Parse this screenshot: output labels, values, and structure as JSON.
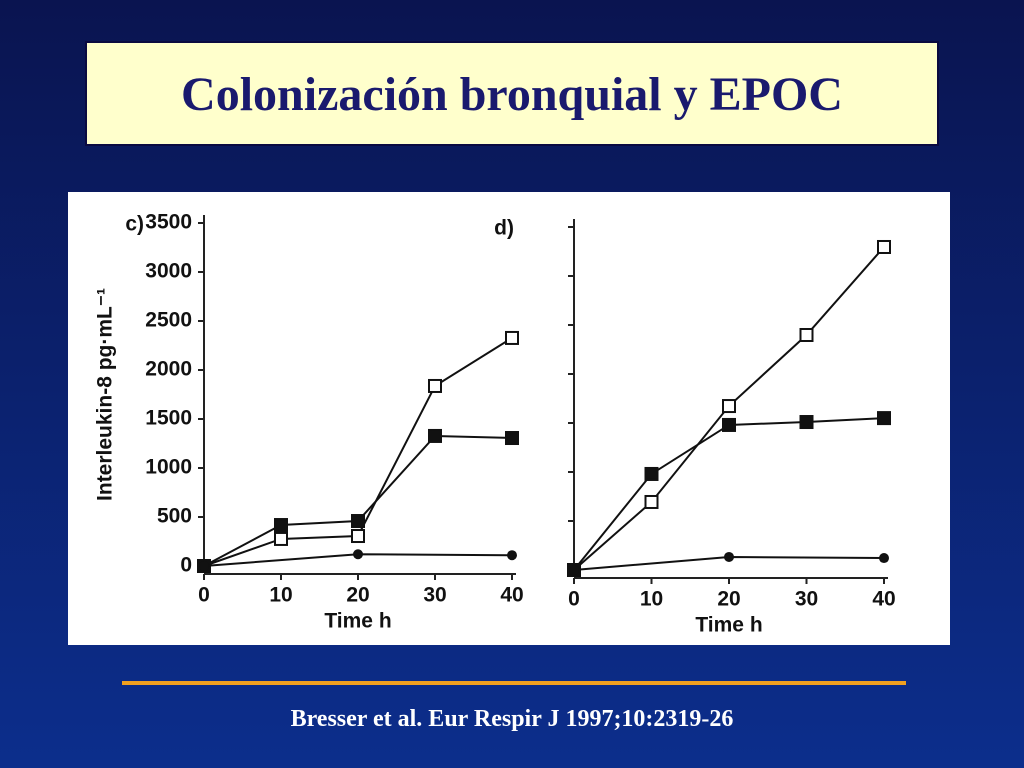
{
  "slide_title": "Colonización bronquial y EPOC",
  "citation": "Bresser et al. Eur Respir J 1997;10:2319-26",
  "chart_data": [
    {
      "type": "line",
      "panel": "c)",
      "xlabel": "Time h",
      "ylabel": "Interleukin-8 pg·mL⁻¹",
      "xlim": [
        0,
        40
      ],
      "xticks": [
        0,
        10,
        20,
        30,
        40
      ],
      "ylim": [
        0,
        3500
      ],
      "yticks": [
        0,
        500,
        1000,
        1500,
        2000,
        2500,
        3000,
        3500
      ],
      "show_ytick_labels": true,
      "series": [
        {
          "marker": "open-square",
          "color": "#111111",
          "x": [
            0,
            10,
            20,
            30,
            40
          ],
          "values": [
            0,
            276,
            306,
            1837,
            2327
          ]
        },
        {
          "marker": "square",
          "color": "#111111",
          "x": [
            0,
            10,
            20,
            30,
            40
          ],
          "values": [
            0,
            418,
            459,
            1327,
            1306
          ]
        },
        {
          "marker": "circle",
          "color": "#111111",
          "x": [
            0,
            20,
            40
          ],
          "values": [
            0,
            120,
            110
          ]
        }
      ]
    },
    {
      "type": "line",
      "panel": "d)",
      "xlabel": "Time h",
      "xlim": [
        0,
        40
      ],
      "xticks": [
        0,
        10,
        20,
        30,
        40
      ],
      "ylim": [
        0,
        3500
      ],
      "yticks": [
        0,
        500,
        1000,
        1500,
        2000,
        2500,
        3000,
        3500
      ],
      "show_ytick_labels": false,
      "series": [
        {
          "marker": "open-square",
          "color": "#111111",
          "x": [
            0,
            10,
            20,
            30,
            40
          ],
          "values": [
            0,
            694,
            1673,
            2398,
            3296
          ]
        },
        {
          "marker": "square",
          "color": "#111111",
          "x": [
            0,
            10,
            20,
            30,
            40
          ],
          "values": [
            0,
            980,
            1480,
            1510,
            1550
          ]
        },
        {
          "marker": "circle",
          "color": "#111111",
          "x": [
            0,
            20,
            40
          ],
          "values": [
            0,
            133,
            122
          ]
        }
      ]
    }
  ]
}
